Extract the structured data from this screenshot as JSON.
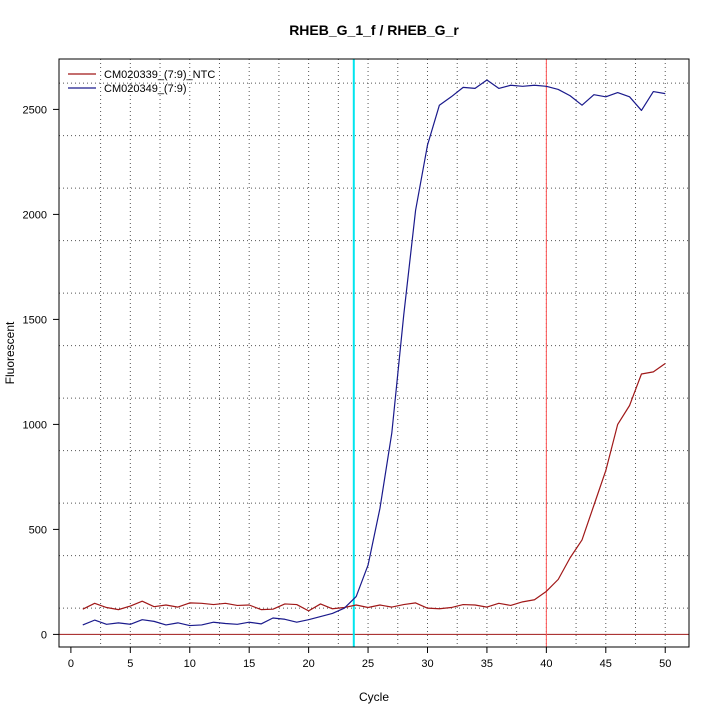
{
  "chart_data": {
    "type": "line",
    "title": "RHEB_G_1_f / RHEB_G_r",
    "xlabel": "Cycle",
    "ylabel": "Fluorescent",
    "xlim": [
      -1,
      52
    ],
    "ylim": [
      -60,
      2740
    ],
    "xticks": [
      0,
      5,
      10,
      15,
      20,
      25,
      30,
      35,
      40,
      45,
      50
    ],
    "yticks": [
      0,
      500,
      1000,
      1500,
      2000,
      2500
    ],
    "x_gridlines": [
      2.5,
      5,
      7.5,
      10,
      12.5,
      15,
      17.5,
      20,
      22.5,
      25,
      27.5,
      30,
      32.5,
      35,
      37.5,
      40,
      42.5,
      45,
      47.5,
      50
    ],
    "y_gridlines": [
      125,
      375,
      625,
      875,
      1125,
      1375,
      1625,
      1875,
      2125,
      2375,
      2625
    ],
    "grid": true,
    "legend_position": "top-left",
    "colors": {
      "ntc": "#a01818",
      "sample": "#1a1a8c",
      "threshold_cycle_line": "#00e5ee",
      "cutoff_line": "#ff5555",
      "baseline": "#a01818"
    },
    "reference_lines": {
      "vertical_cyan_x": 23.8,
      "vertical_red_x": 40,
      "horizontal_baseline_y": 0
    },
    "x": [
      1,
      2,
      3,
      4,
      5,
      6,
      7,
      8,
      9,
      10,
      11,
      12,
      13,
      14,
      15,
      16,
      17,
      18,
      19,
      20,
      21,
      22,
      23,
      24,
      25,
      26,
      27,
      28,
      29,
      30,
      31,
      32,
      33,
      34,
      35,
      36,
      37,
      38,
      39,
      40,
      41,
      42,
      43,
      44,
      45,
      46,
      47,
      48,
      49,
      50
    ],
    "series": [
      {
        "name": "CM020339_(7:9)_NTC",
        "color": "#a01818",
        "values": [
          120,
          148,
          128,
          118,
          135,
          158,
          132,
          140,
          130,
          150,
          148,
          142,
          148,
          138,
          140,
          118,
          120,
          145,
          142,
          112,
          145,
          122,
          128,
          140,
          128,
          140,
          130,
          142,
          150,
          125,
          122,
          128,
          142,
          140,
          130,
          148,
          138,
          155,
          165,
          205,
          262,
          365,
          450,
          615,
          780,
          1000,
          1090,
          1240,
          1250,
          1290
        ]
      },
      {
        "name": "CM020349_(7:9)",
        "color": "#1a1a8c",
        "values": [
          45,
          68,
          48,
          55,
          48,
          70,
          62,
          45,
          55,
          42,
          45,
          58,
          52,
          48,
          58,
          50,
          78,
          72,
          58,
          70,
          85,
          100,
          125,
          180,
          330,
          600,
          960,
          1520,
          2020,
          2330,
          2520,
          2560,
          2605,
          2600,
          2640,
          2600,
          2615,
          2610,
          2615,
          2610,
          2595,
          2565,
          2520,
          2570,
          2560,
          2580,
          2560,
          2495,
          2585,
          2575
        ]
      }
    ]
  }
}
